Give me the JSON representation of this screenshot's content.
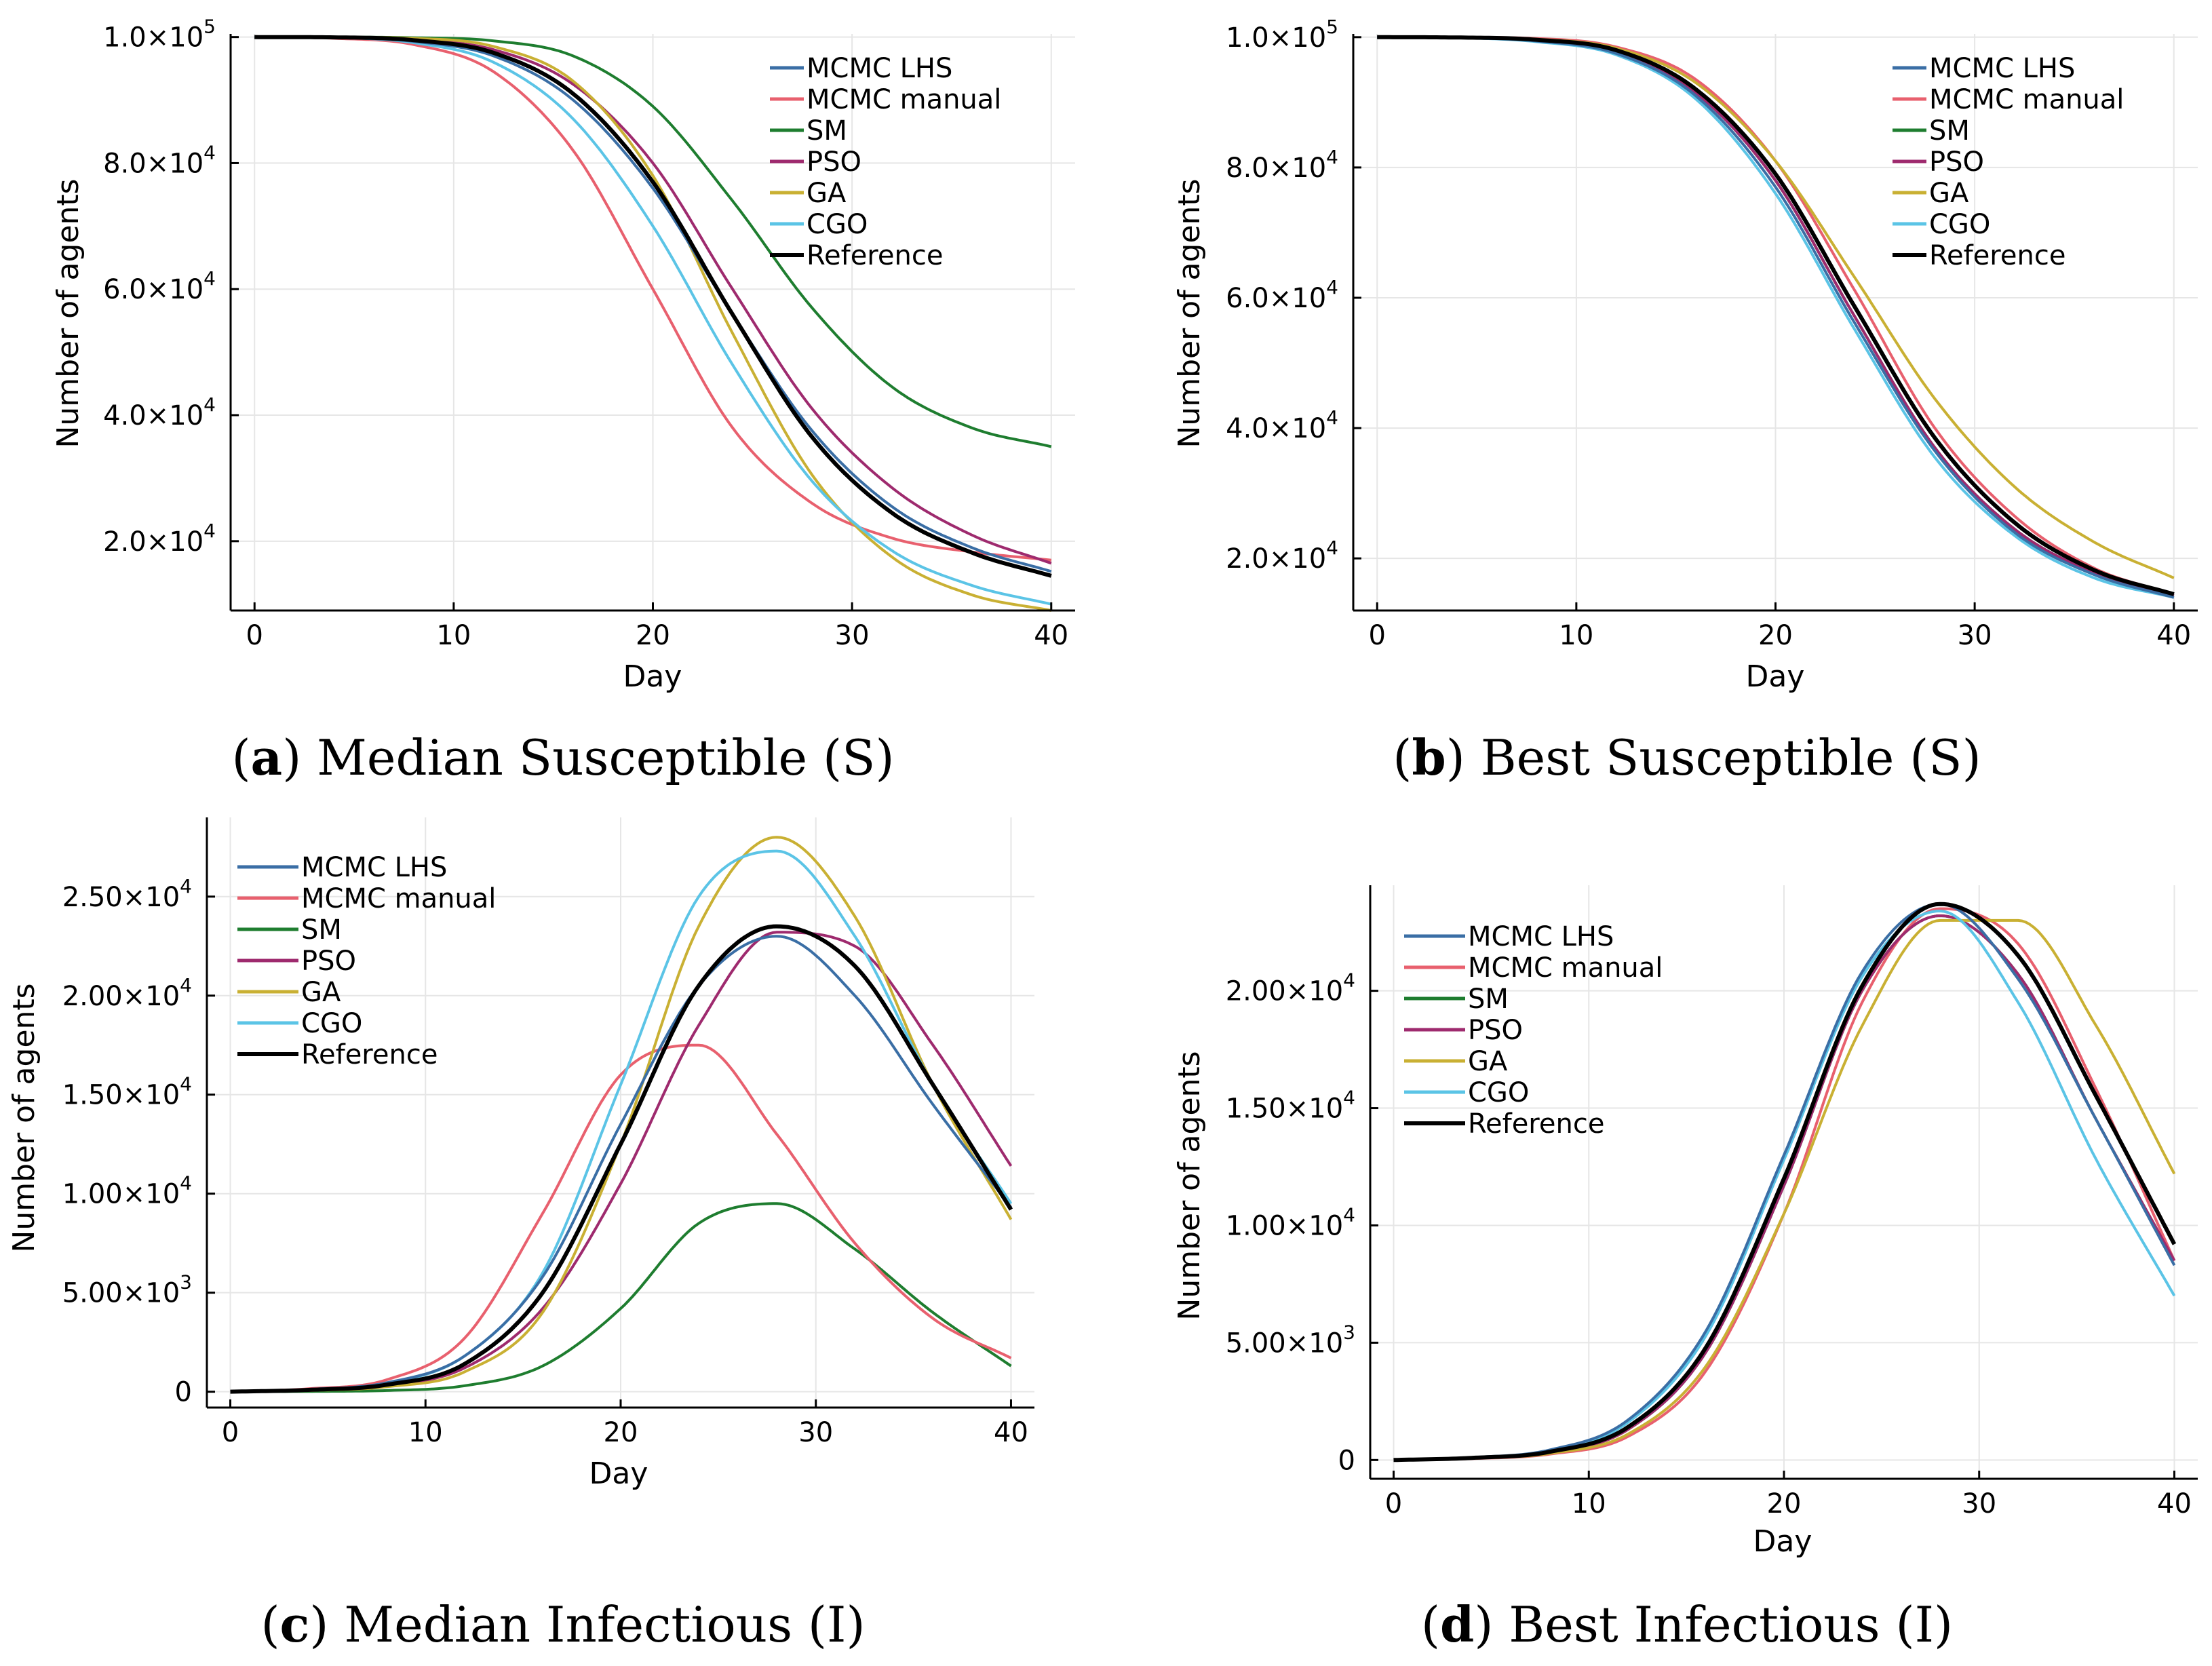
{
  "colors": {
    "MCMC LHS": "#3a6ea5",
    "MCMC manual": "#e8606e",
    "SM": "#1e7d2f",
    "PSO": "#9e2a6e",
    "GA": "#c9b033",
    "CGO": "#5bc4e6",
    "Reference": "#000000"
  },
  "chart_data": [
    {
      "id": "a",
      "type": "line",
      "caption_letter": "a",
      "caption_text": "Median Susceptible (S)",
      "xlabel": "Day",
      "ylabel": "Number of agents",
      "xlim": [
        -1.2,
        41.2
      ],
      "ylim": [
        9000,
        100500
      ],
      "x_ticks": [
        0,
        10,
        20,
        30,
        40
      ],
      "y_ticks": [
        {
          "value": 100000,
          "mant": "1.0",
          "exp": "5"
        },
        {
          "value": 80000,
          "mant": "8.0",
          "exp": "4"
        },
        {
          "value": 60000,
          "mant": "6.0",
          "exp": "4"
        },
        {
          "value": 40000,
          "mant": "4.0",
          "exp": "4"
        },
        {
          "value": 20000,
          "mant": "2.0",
          "exp": "4"
        }
      ],
      "legend_position": "top-right",
      "x": [
        0,
        4,
        8,
        12,
        16,
        20,
        24,
        28,
        32,
        36,
        40
      ],
      "series": [
        {
          "name": "MCMC LHS",
          "values": [
            100000,
            99900,
            99300,
            97000,
            90000,
            76000,
            56000,
            37500,
            25500,
            19000,
            15200
          ]
        },
        {
          "name": "MCMC manual",
          "values": [
            100000,
            99800,
            98800,
            94500,
            82000,
            60000,
            38000,
            26000,
            20500,
            18300,
            17000
          ]
        },
        {
          "name": "SM",
          "values": [
            100000,
            99990,
            99900,
            99400,
            97000,
            89000,
            74000,
            57000,
            44500,
            38000,
            35000
          ]
        },
        {
          "name": "PSO",
          "values": [
            100000,
            99950,
            99600,
            98000,
            92500,
            80000,
            60000,
            41000,
            28500,
            21000,
            16500
          ]
        },
        {
          "name": "GA",
          "values": [
            100000,
            99980,
            99800,
            98500,
            93000,
            78000,
            53000,
            30500,
            17500,
            11500,
            9000
          ]
        },
        {
          "name": "CGO",
          "values": [
            100000,
            99900,
            99100,
            96000,
            87000,
            70000,
            48000,
            29500,
            18500,
            13000,
            10000
          ]
        },
        {
          "name": "Reference",
          "values": [
            100000,
            99950,
            99500,
            97500,
            91000,
            77000,
            56000,
            36500,
            24500,
            18200,
            14500
          ]
        }
      ]
    },
    {
      "id": "b",
      "type": "line",
      "caption_letter": "b",
      "caption_text": "Best Susceptible (S)",
      "xlabel": "Day",
      "ylabel": "Number of agents",
      "xlim": [
        -1.2,
        41.2
      ],
      "ylim": [
        12000,
        100500
      ],
      "x_ticks": [
        0,
        10,
        20,
        30,
        40
      ],
      "y_ticks": [
        {
          "value": 100000,
          "mant": "1.0",
          "exp": "5"
        },
        {
          "value": 80000,
          "mant": "8.0",
          "exp": "4"
        },
        {
          "value": 60000,
          "mant": "6.0",
          "exp": "4"
        },
        {
          "value": 40000,
          "mant": "4.0",
          "exp": "4"
        },
        {
          "value": 20000,
          "mant": "2.0",
          "exp": "4"
        }
      ],
      "legend_position": "top-right",
      "x": [
        0,
        4,
        8,
        12,
        16,
        20,
        24,
        28,
        32,
        36,
        40
      ],
      "series": [
        {
          "name": "MCMC LHS",
          "values": [
            100000,
            99900,
            99400,
            97500,
            91000,
            77000,
            56000,
            36500,
            24000,
            17500,
            14000
          ]
        },
        {
          "name": "MCMC manual",
          "values": [
            100000,
            99980,
            99800,
            98500,
            93500,
            81000,
            61000,
            40000,
            26500,
            18500,
            14500
          ]
        },
        {
          "name": "SM",
          "values": [
            100000,
            99950,
            99500,
            97800,
            91500,
            78000,
            57000,
            37000,
            24500,
            17800,
            14300
          ]
        },
        {
          "name": "PSO",
          "values": [
            100000,
            99950,
            99500,
            97800,
            91500,
            78000,
            57000,
            37000,
            24500,
            17800,
            14300
          ]
        },
        {
          "name": "GA",
          "values": [
            100000,
            99970,
            99700,
            98300,
            93000,
            81000,
            63000,
            44500,
            31000,
            22500,
            17000
          ]
        },
        {
          "name": "CGO",
          "values": [
            100000,
            99900,
            99300,
            97300,
            90500,
            76000,
            55000,
            35500,
            23500,
            17000,
            14000
          ]
        },
        {
          "name": "Reference",
          "values": [
            100000,
            99950,
            99600,
            98000,
            92000,
            79000,
            58500,
            38500,
            25500,
            18200,
            14500
          ]
        }
      ]
    },
    {
      "id": "c",
      "type": "line",
      "caption_letter": "c",
      "caption_text": "Median Infectious (I)",
      "xlabel": "Day",
      "ylabel": "Number of agents",
      "xlim": [
        -1.2,
        41.2
      ],
      "ylim": [
        -800,
        29000
      ],
      "x_ticks": [
        0,
        10,
        20,
        30,
        40
      ],
      "y_ticks": [
        {
          "value": 25000,
          "mant": "2.50",
          "exp": "4"
        },
        {
          "value": 20000,
          "mant": "2.00",
          "exp": "4"
        },
        {
          "value": 15000,
          "mant": "1.50",
          "exp": "4"
        },
        {
          "value": 10000,
          "mant": "1.00",
          "exp": "4"
        },
        {
          "value": 5000,
          "mant": "5.00",
          "exp": "3"
        },
        {
          "value": 0,
          "mant": "0",
          "exp": ""
        }
      ],
      "legend_position": "top-left",
      "x": [
        0,
        4,
        8,
        12,
        16,
        20,
        24,
        28,
        32,
        36,
        40
      ],
      "series": [
        {
          "name": "MCMC LHS",
          "values": [
            0,
            120,
            450,
            1800,
            5800,
            13500,
            20500,
            23000,
            20000,
            14500,
            9300
          ]
        },
        {
          "name": "MCMC manual",
          "values": [
            0,
            150,
            600,
            2700,
            9000,
            16000,
            17500,
            13000,
            7500,
            3700,
            1700
          ]
        },
        {
          "name": "SM",
          "values": [
            0,
            15,
            60,
            300,
            1300,
            4200,
            8500,
            9500,
            7200,
            4000,
            1300
          ]
        },
        {
          "name": "PSO",
          "values": [
            0,
            80,
            300,
            1200,
            4200,
            10500,
            18500,
            23200,
            22500,
            17500,
            11400
          ]
        },
        {
          "name": "GA",
          "values": [
            0,
            60,
            250,
            1000,
            4000,
            12500,
            23500,
            28000,
            24000,
            15500,
            8700
          ]
        },
        {
          "name": "CGO",
          "values": [
            0,
            100,
            420,
            1800,
            6000,
            15500,
            25000,
            27300,
            23000,
            15500,
            9500
          ]
        },
        {
          "name": "Reference",
          "values": [
            0,
            90,
            350,
            1400,
            5000,
            12500,
            20500,
            23500,
            21500,
            15500,
            9200
          ]
        }
      ]
    },
    {
      "id": "d",
      "type": "line",
      "caption_letter": "d",
      "caption_text": "Best Infectious (I)",
      "xlabel": "Day",
      "ylabel": "Number of agents",
      "xlim": [
        -1.2,
        41.2
      ],
      "ylim": [
        -800,
        24500
      ],
      "x_ticks": [
        0,
        10,
        20,
        30,
        40
      ],
      "y_ticks": [
        {
          "value": 20000,
          "mant": "2.00",
          "exp": "4"
        },
        {
          "value": 15000,
          "mant": "1.50",
          "exp": "4"
        },
        {
          "value": 10000,
          "mant": "1.00",
          "exp": "4"
        },
        {
          "value": 5000,
          "mant": "5.00",
          "exp": "3"
        },
        {
          "value": 0,
          "mant": "0",
          "exp": ""
        }
      ],
      "legend_position": "top-left",
      "x": [
        0,
        4,
        8,
        12,
        16,
        20,
        24,
        28,
        32,
        36,
        40
      ],
      "series": [
        {
          "name": "MCMC LHS",
          "values": [
            0,
            110,
            430,
            1700,
            5500,
            13000,
            20800,
            23700,
            20500,
            14500,
            8300
          ]
        },
        {
          "name": "MCMC manual",
          "values": [
            0,
            60,
            250,
            1000,
            3800,
            10500,
            19500,
            23500,
            22000,
            15800,
            8500
          ]
        },
        {
          "name": "SM",
          "values": [
            0,
            80,
            320,
            1300,
            4600,
            11700,
            20000,
            23200,
            20700,
            14500,
            8500
          ]
        },
        {
          "name": "PSO",
          "values": [
            0,
            80,
            320,
            1300,
            4600,
            11700,
            20000,
            23200,
            20700,
            14500,
            8500
          ]
        },
        {
          "name": "GA",
          "values": [
            0,
            70,
            280,
            1100,
            4000,
            10500,
            18500,
            23000,
            23000,
            18500,
            12200
          ]
        },
        {
          "name": "CGO",
          "values": [
            0,
            100,
            400,
            1600,
            5300,
            12800,
            20600,
            23400,
            19500,
            12800,
            7000
          ]
        },
        {
          "name": "Reference",
          "values": [
            0,
            90,
            350,
            1400,
            4800,
            12000,
            20200,
            23700,
            21500,
            15500,
            9200
          ]
        }
      ]
    }
  ]
}
